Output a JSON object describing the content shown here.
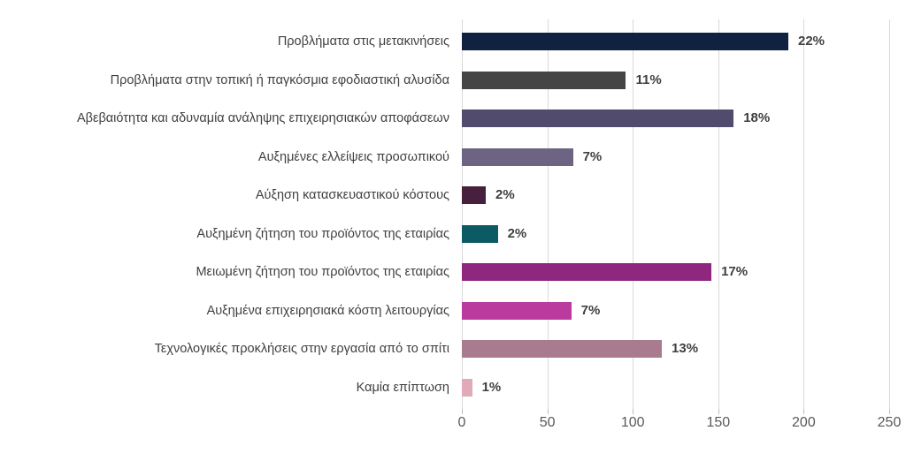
{
  "chart_data": {
    "type": "bar",
    "orientation": "horizontal",
    "title": "",
    "xlabel": "",
    "ylabel": "",
    "xlim": [
      0,
      250
    ],
    "x_ticks": [
      0,
      50,
      100,
      150,
      200,
      250
    ],
    "grid": true,
    "legend": false,
    "categories": [
      "Προβλήματα στις μετακινήσεις",
      "Προβλήματα στην τοπική ή παγκόσμια εφοδιαστική αλυσίδα",
      "Αβεβαιότητα και αδυναμία ανάληψης επιχειρησιακών αποφάσεων",
      "Αυξημένες ελλείψεις προσωπικού",
      "Αύξηση κατασκευαστικού κόστους",
      "Αυξημένη ζήτηση του προϊόντος της εταιρίας",
      "Μειωμένη ζήτηση του προϊόντος της εταιρίας",
      "Αυξημένα επιχειρησιακά κόστη λειτουργίας",
      "Τεχνολογικές προκλήσεις στην εργασία από το σπίτι",
      "Καμία επίπτωση"
    ],
    "values": [
      191,
      96,
      159,
      65,
      14,
      21,
      146,
      64,
      117,
      6
    ],
    "data_labels": [
      "22%",
      "11%",
      "18%",
      "7%",
      "2%",
      "2%",
      "17%",
      "7%",
      "13%",
      "1%"
    ],
    "bar_colors": [
      "#112240",
      "#454545",
      "#514b6e",
      "#6d6383",
      "#47203d",
      "#0c5a63",
      "#90277e",
      "#ba3a9d",
      "#a87b8f",
      "#e0abb7"
    ]
  },
  "colors": {
    "background": "#ffffff",
    "gridline": "#d9d9d9",
    "axis_text": "#595959",
    "category_text": "#404040",
    "value_text": "#3f3f3f"
  }
}
